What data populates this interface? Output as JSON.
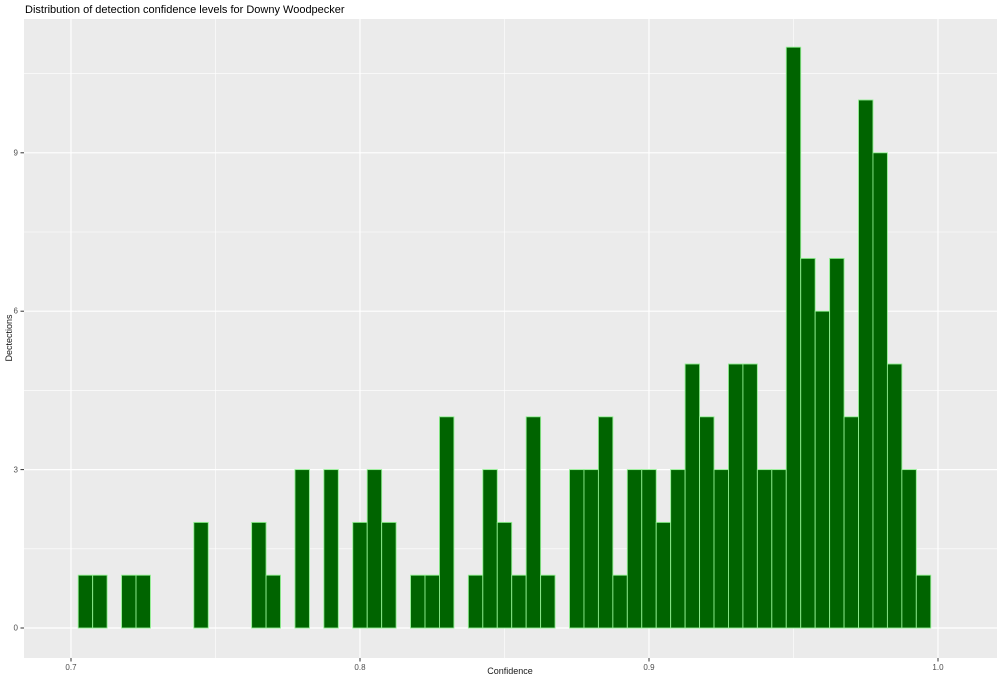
{
  "chart_data": {
    "type": "bar",
    "subtype": "histogram",
    "title": "Distribution of detection confidence levels for Downy Woodpecker",
    "xlabel": "Confidence",
    "ylabel": "Dectections",
    "bin_start": 0.7025,
    "bin_width": 0.005,
    "counts": [
      1,
      1,
      0,
      1,
      1,
      0,
      0,
      0,
      2,
      0,
      0,
      0,
      2,
      1,
      0,
      3,
      0,
      3,
      0,
      2,
      3,
      2,
      0,
      1,
      1,
      4,
      0,
      1,
      3,
      2,
      1,
      4,
      1,
      0,
      3,
      3,
      4,
      1,
      3,
      3,
      2,
      3,
      5,
      4,
      3,
      5,
      5,
      3,
      3,
      11,
      7,
      6,
      7,
      4,
      10,
      9,
      5,
      3,
      1
    ],
    "x_ticks": [
      0.7,
      0.8,
      0.9,
      1.0
    ],
    "x_tick_labels": [
      "0.7",
      "0.8",
      "0.9",
      "1.0"
    ],
    "y_ticks": [
      0,
      3,
      6,
      9
    ],
    "y_tick_labels": [
      "0",
      "3",
      "6",
      "9"
    ],
    "x_minor": [
      0.75,
      0.85,
      0.95
    ],
    "y_minor": [
      1.5,
      4.5,
      7.5,
      10.5
    ],
    "xlim": [
      0.68374,
      1.02042
    ],
    "ylim": [
      -0.568,
      11.534
    ],
    "grid": true,
    "legend": false,
    "colors": {
      "bar_fill": "#006400",
      "bar_stroke": "#90EE90",
      "panel_bg": "#EBEBEB",
      "grid": "#FFFFFF",
      "tick_mark": "#333333",
      "tick_text": "#4D4D4D",
      "title_text": "#000000"
    }
  }
}
